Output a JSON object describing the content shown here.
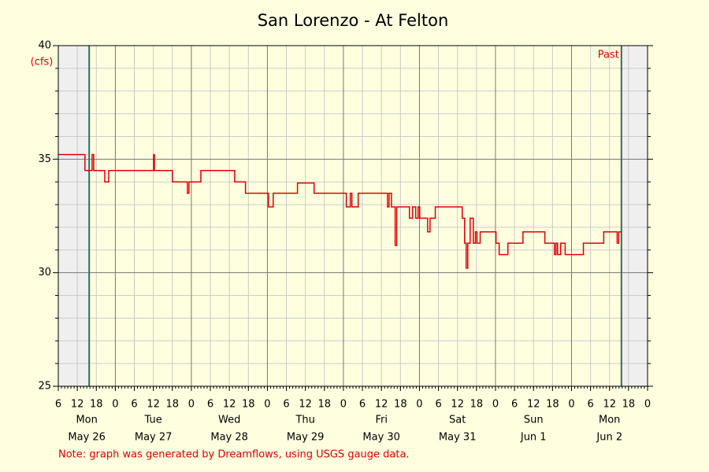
{
  "chart_data": {
    "type": "line",
    "step": true,
    "title": "San Lorenzo - At Felton",
    "ylabel": "(cfs)",
    "note": "Note: graph was generated by Dreamflows, using USGS gauge data.",
    "annotation": "Past",
    "color": "#e00000",
    "marker_color": "#2e6e62",
    "markers": [
      "May 26 15:45",
      "Jun 2 15:45"
    ],
    "grid": true,
    "ylim": [
      25,
      40
    ],
    "yticks": [
      25,
      30,
      35,
      40
    ],
    "xlim": [
      "May 26 06:00",
      "Jun 3 00:00"
    ],
    "xticks": [
      {
        "value": "May 26 06:00",
        "label": "6"
      },
      {
        "value": "May 26 12:00",
        "label": "12"
      },
      {
        "value": "May 26 18:00",
        "label": "18"
      },
      {
        "value": "May 27 00:00",
        "label": "0"
      },
      {
        "value": "May 27 06:00",
        "label": "6"
      },
      {
        "value": "May 27 12:00",
        "label": "12"
      },
      {
        "value": "May 27 18:00",
        "label": "18"
      },
      {
        "value": "May 28 00:00",
        "label": "0"
      },
      {
        "value": "May 28 06:00",
        "label": "6"
      },
      {
        "value": "May 28 12:00",
        "label": "12"
      },
      {
        "value": "May 28 18:00",
        "label": "18"
      },
      {
        "value": "May 29 00:00",
        "label": "0"
      },
      {
        "value": "May 29 06:00",
        "label": "6"
      },
      {
        "value": "May 29 12:00",
        "label": "12"
      },
      {
        "value": "May 29 18:00",
        "label": "18"
      },
      {
        "value": "May 30 00:00",
        "label": "0"
      },
      {
        "value": "May 30 06:00",
        "label": "6"
      },
      {
        "value": "May 30 12:00",
        "label": "12"
      },
      {
        "value": "May 30 18:00",
        "label": "18"
      },
      {
        "value": "May 31 00:00",
        "label": "0"
      },
      {
        "value": "May 31 06:00",
        "label": "6"
      },
      {
        "value": "May 31 12:00",
        "label": "12"
      },
      {
        "value": "May 31 18:00",
        "label": "18"
      },
      {
        "value": "Jun 1 00:00",
        "label": "0"
      },
      {
        "value": "Jun 1 06:00",
        "label": "6"
      },
      {
        "value": "Jun 1 12:00",
        "label": "12"
      },
      {
        "value": "Jun 1 18:00",
        "label": "18"
      },
      {
        "value": "Jun 2 00:00",
        "label": "0"
      },
      {
        "value": "Jun 2 06:00",
        "label": "6"
      },
      {
        "value": "Jun 2 12:00",
        "label": "12"
      },
      {
        "value": "Jun 2 18:00",
        "label": "18"
      },
      {
        "value": "Jun 3 00:00",
        "label": "0"
      }
    ],
    "days": [
      {
        "weekday": "Mon",
        "date": "May 26"
      },
      {
        "weekday": "Tue",
        "date": "May 27"
      },
      {
        "weekday": "Wed",
        "date": "May 28"
      },
      {
        "weekday": "Thu",
        "date": "May 29"
      },
      {
        "weekday": "Fri",
        "date": "May 30"
      },
      {
        "weekday": "Sat",
        "date": "May 31"
      },
      {
        "weekday": "Sun",
        "date": "Jun 1"
      },
      {
        "weekday": "Mon",
        "date": "Jun 2"
      }
    ],
    "x": [
      "May 26 06:00",
      "May 26 14:25",
      "May 26 16:40",
      "May 26 17:10",
      "May 26 20:40",
      "May 26 21:55",
      "May 27 12:05",
      "May 27 12:20",
      "May 27 18:00",
      "May 27 22:45",
      "May 27 23:15",
      "May 28 03:00",
      "May 28 13:40",
      "May 28 17:05",
      "May 29 00:20",
      "May 29 01:50",
      "May 29 09:30",
      "May 29 14:45",
      "May 30 00:55",
      "May 30 02:10",
      "May 30 02:40",
      "May 30 04:40",
      "May 30 13:55",
      "May 30 14:25",
      "May 30 15:10",
      "May 30 16:20",
      "May 30 16:50",
      "May 30 20:50",
      "May 30 21:50",
      "May 30 22:50",
      "May 30 23:35",
      "May 31 00:05",
      "May 31 02:35",
      "May 31 03:20",
      "May 31 05:00",
      "May 31 13:30",
      "May 31 14:15",
      "May 31 14:45",
      "May 31 15:15",
      "May 31 16:00",
      "May 31 17:00",
      "May 31 17:40",
      "May 31 18:10",
      "May 31 19:10",
      "Jun 1 00:10",
      "Jun 1 01:10",
      "Jun 1 03:55",
      "Jun 1 08:40",
      "Jun 1 15:35",
      "Jun 1 18:35",
      "Jun 1 19:05",
      "Jun 1 19:35",
      "Jun 1 20:35",
      "Jun 1 22:00",
      "Jun 2 03:45",
      "Jun 2 10:10",
      "Jun 2 14:25",
      "Jun 2 14:55",
      "Jun 2 15:45"
    ],
    "values": [
      35.2,
      34.5,
      35.2,
      34.5,
      34.0,
      34.5,
      35.2,
      34.5,
      34.0,
      33.5,
      34.0,
      34.5,
      34.0,
      33.5,
      32.9,
      33.5,
      33.95,
      33.5,
      32.9,
      33.5,
      32.9,
      33.5,
      32.9,
      33.5,
      32.9,
      31.2,
      32.9,
      32.4,
      32.9,
      32.4,
      32.9,
      32.4,
      31.8,
      32.4,
      32.9,
      32.4,
      31.3,
      30.2,
      31.3,
      32.4,
      31.3,
      31.8,
      31.3,
      31.8,
      31.3,
      30.8,
      31.3,
      31.8,
      31.3,
      30.8,
      31.3,
      30.8,
      31.3,
      30.8,
      31.3,
      31.8,
      31.3,
      31.8,
      31.8
    ]
  }
}
